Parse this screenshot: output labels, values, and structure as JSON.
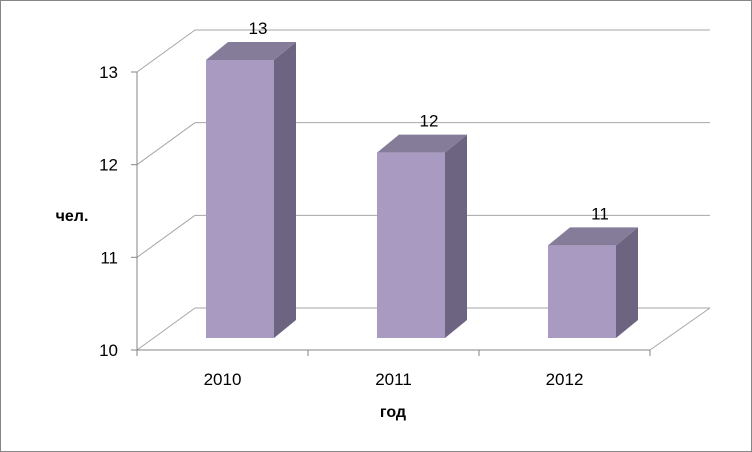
{
  "chart_data": {
    "type": "bar",
    "style": "3d-column",
    "title": "",
    "xlabel": "год",
    "ylabel": "чел.",
    "categories": [
      "2010",
      "2011",
      "2012"
    ],
    "values": [
      13,
      12,
      11
    ],
    "data_labels": [
      "13",
      "12",
      "11"
    ],
    "ylim": [
      10,
      13
    ],
    "yticks": [
      "10",
      "11",
      "12",
      "13"
    ],
    "grid": true,
    "legend": "none",
    "colors": {
      "bar_front": "#A99AC1",
      "bar_side": "#6C6480",
      "bar_top": "#857C9A",
      "grid": "#A6A6A6",
      "axis": "#868686",
      "border": "#868686"
    }
  }
}
